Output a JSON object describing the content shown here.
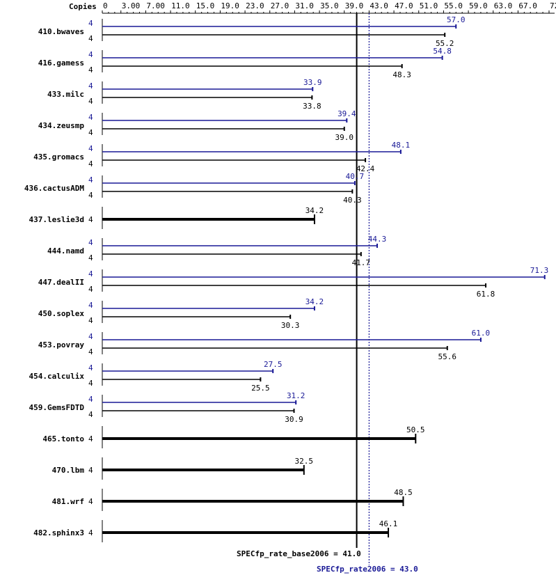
{
  "chart_data": {
    "type": "bar",
    "orientation": "horizontal",
    "copies_header": "Copies",
    "x_ticks": [
      "0",
      "3.00",
      "7.00",
      "11.0",
      "15.0",
      "19.0",
      "23.0",
      "27.0",
      "31.0",
      "35.0",
      "39.0",
      "43.0",
      "47.0",
      "51.0",
      "55.0",
      "59.0",
      "63.0",
      "67.0",
      "72.0"
    ],
    "xlim": [
      0,
      72
    ],
    "grid": false,
    "colors": {
      "base": "#000000",
      "peak": "#191996"
    },
    "series": [
      {
        "key": "peak",
        "color": "#191996"
      },
      {
        "key": "base",
        "color": "#000000"
      }
    ],
    "benchmarks": [
      {
        "name": "410.bwaves",
        "copies_peak": "4",
        "copies_base": "4",
        "peak": 57.0,
        "base": 55.2,
        "peak_label": "57.0",
        "base_label": "55.2"
      },
      {
        "name": "416.gamess",
        "copies_peak": "4",
        "copies_base": "4",
        "peak": 54.8,
        "base": 48.3,
        "peak_label": "54.8",
        "base_label": "48.3"
      },
      {
        "name": "433.milc",
        "copies_peak": "4",
        "copies_base": "4",
        "peak": 33.9,
        "base": 33.8,
        "peak_label": "33.9",
        "base_label": "33.8"
      },
      {
        "name": "434.zeusmp",
        "copies_peak": "4",
        "copies_base": "4",
        "peak": 39.4,
        "base": 39.0,
        "peak_label": "39.4",
        "base_label": "39.0"
      },
      {
        "name": "435.gromacs",
        "copies_peak": "4",
        "copies_base": "4",
        "peak": 48.1,
        "base": 42.4,
        "peak_label": "48.1",
        "base_label": "42.4"
      },
      {
        "name": "436.cactusADM",
        "copies_peak": "4",
        "copies_base": "4",
        "peak": 40.7,
        "base": 40.3,
        "peak_label": "40.7",
        "base_label": "40.3"
      },
      {
        "name": "437.leslie3d",
        "copies": "4",
        "combined": 34.2,
        "combined_label": "34.2"
      },
      {
        "name": "444.namd",
        "copies_peak": "4",
        "copies_base": "4",
        "peak": 44.3,
        "base": 41.7,
        "peak_label": "44.3",
        "base_label": "41.7"
      },
      {
        "name": "447.dealII",
        "copies_peak": "4",
        "copies_base": "4",
        "peak": 71.3,
        "base": 61.8,
        "peak_label": "71.3",
        "base_label": "61.8"
      },
      {
        "name": "450.soplex",
        "copies_peak": "4",
        "copies_base": "4",
        "peak": 34.2,
        "base": 30.3,
        "peak_label": "34.2",
        "base_label": "30.3"
      },
      {
        "name": "453.povray",
        "copies_peak": "4",
        "copies_base": "4",
        "peak": 61.0,
        "base": 55.6,
        "peak_label": "61.0",
        "base_label": "55.6"
      },
      {
        "name": "454.calculix",
        "copies_peak": "4",
        "copies_base": "4",
        "peak": 27.5,
        "base": 25.5,
        "peak_label": "27.5",
        "base_label": "25.5"
      },
      {
        "name": "459.GemsFDTD",
        "copies_peak": "4",
        "copies_base": "4",
        "peak": 31.2,
        "base": 30.9,
        "peak_label": "31.2",
        "base_label": "30.9"
      },
      {
        "name": "465.tonto",
        "copies": "4",
        "combined": 50.5,
        "combined_label": "50.5"
      },
      {
        "name": "470.lbm",
        "copies": "4",
        "combined": 32.5,
        "combined_label": "32.5"
      },
      {
        "name": "481.wrf",
        "copies": "4",
        "combined": 48.5,
        "combined_label": "48.5"
      },
      {
        "name": "482.sphinx3",
        "copies": "4",
        "combined": 46.1,
        "combined_label": "46.1"
      }
    ],
    "reference_lines": [
      {
        "key": "base",
        "value": 41.0,
        "label": "SPECfp_rate_base2006 = 41.0",
        "style": "solid",
        "color": "#000000"
      },
      {
        "key": "peak",
        "value": 43.0,
        "label": "SPECfp_rate2006 = 43.0",
        "style": "dotted",
        "color": "#191996"
      }
    ]
  }
}
